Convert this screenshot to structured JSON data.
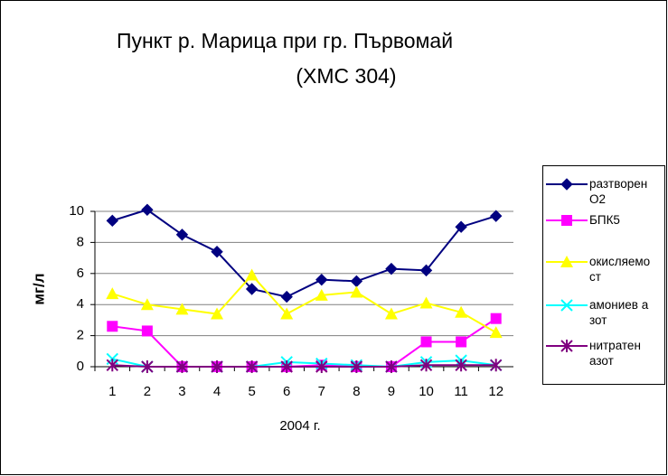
{
  "chart_data": {
    "type": "line",
    "title": [
      "Пункт р. Марица при гр. Първомай",
      "(ХМС 304)"
    ],
    "xlabel": "2004 г.",
    "ylabel": "мг/л",
    "categories": [
      "1",
      "2",
      "3",
      "4",
      "5",
      "6",
      "7",
      "8",
      "9",
      "10",
      "11",
      "12"
    ],
    "ylim": [
      0,
      10
    ],
    "yticks": [
      0,
      2,
      4,
      6,
      8,
      10
    ],
    "grid": true,
    "legend": "right",
    "series": [
      {
        "name": "разтворен О2",
        "color": "#000080",
        "marker": "diamond",
        "values": [
          9.4,
          10.1,
          8.5,
          7.4,
          5.0,
          4.5,
          5.6,
          5.5,
          6.3,
          6.2,
          9.0,
          9.7
        ]
      },
      {
        "name": "БПК5",
        "color": "#ff00ff",
        "marker": "square",
        "values": [
          2.6,
          2.3,
          0,
          0,
          0,
          0,
          0.1,
          0,
          0,
          1.6,
          1.6,
          3.1
        ]
      },
      {
        "name": "окисляемост",
        "color": "#ffff00",
        "marker": "triangle",
        "values": [
          4.7,
          4.0,
          3.7,
          3.4,
          5.9,
          3.4,
          4.6,
          4.8,
          3.4,
          4.1,
          3.5,
          2.2
        ]
      },
      {
        "name": "амониев азот",
        "color": "#00ffff",
        "marker": "x",
        "values": [
          0.5,
          0,
          0,
          0,
          0,
          0.3,
          0.2,
          0.1,
          0,
          0.3,
          0.4,
          0.1
        ]
      },
      {
        "name": "нитратен азот",
        "color": "#800080",
        "marker": "star",
        "values": [
          0.1,
          0,
          0,
          0,
          0,
          0,
          0,
          0,
          0,
          0.1,
          0.1,
          0.1
        ]
      }
    ]
  }
}
